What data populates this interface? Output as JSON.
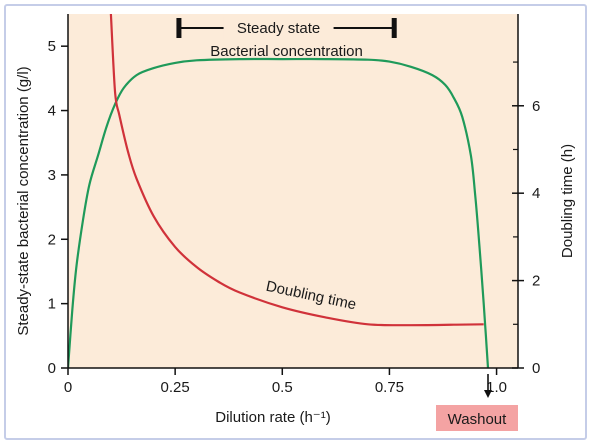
{
  "chart_data": {
    "type": "line",
    "xlabel": "Dilution rate (h⁻¹)",
    "ylabel_left": "Steady-state bacterial concentration (g/l)",
    "ylabel_right": "Doubling time (h)",
    "xlim": [
      0,
      1.05
    ],
    "ylim_left": [
      0,
      5.5
    ],
    "ylim_right": [
      0,
      8.1
    ],
    "x_ticks": [
      {
        "value": 0,
        "label": "0"
      },
      {
        "value": 0.25,
        "label": "0.25"
      },
      {
        "value": 0.5,
        "label": "0.5"
      },
      {
        "value": 0.75,
        "label": "0.75"
      },
      {
        "value": 1.0,
        "label": "1.0"
      }
    ],
    "y_left_ticks": [
      {
        "value": 0,
        "label": "0"
      },
      {
        "value": 1,
        "label": "1"
      },
      {
        "value": 2,
        "label": "2"
      },
      {
        "value": 3,
        "label": "3"
      },
      {
        "value": 4,
        "label": "4"
      },
      {
        "value": 5,
        "label": "5"
      }
    ],
    "y_right_ticks": [
      {
        "value": 0,
        "label": "0"
      },
      {
        "value": 2,
        "label": "2"
      },
      {
        "value": 4,
        "label": "4"
      },
      {
        "value": 6,
        "label": "6"
      }
    ],
    "y_right_minor": [
      1,
      3,
      5,
      7
    ],
    "background_color": "#fcebd9",
    "series": [
      {
        "name": "Bacterial concentration",
        "axis": "left",
        "color": "#1f9a5a",
        "x": [
          0,
          0.01,
          0.02,
          0.035,
          0.05,
          0.07,
          0.09,
          0.11,
          0.13,
          0.16,
          0.2,
          0.25,
          0.3,
          0.4,
          0.5,
          0.6,
          0.7,
          0.75,
          0.8,
          0.85,
          0.88,
          0.9,
          0.92,
          0.94,
          0.95,
          0.96,
          0.97,
          0.975,
          0.98
        ],
        "values": [
          0,
          0.9,
          1.6,
          2.3,
          2.85,
          3.3,
          3.75,
          4.1,
          4.35,
          4.55,
          4.66,
          4.74,
          4.78,
          4.8,
          4.8,
          4.8,
          4.79,
          4.76,
          4.68,
          4.55,
          4.4,
          4.2,
          3.9,
          3.3,
          2.7,
          1.9,
          1.0,
          0.5,
          0
        ]
      },
      {
        "name": "Doubling time",
        "axis": "right",
        "color": "#d0323a",
        "x": [
          0.1,
          0.11,
          0.12,
          0.14,
          0.16,
          0.2,
          0.25,
          0.3,
          0.35,
          0.4,
          0.5,
          0.6,
          0.7,
          0.8,
          0.9,
          0.97
        ],
        "values": [
          8.1,
          6.3,
          5.78,
          4.95,
          4.33,
          3.47,
          2.77,
          2.31,
          1.98,
          1.73,
          1.39,
          1.16,
          1.0,
          0.98,
          0.99,
          1.0
        ]
      }
    ],
    "annotations": {
      "steady_state": {
        "label": "Steady state",
        "x_range": [
          0.26,
          0.76
        ]
      },
      "concentration_label": "Bacterial concentration",
      "doubling_label": "Doubling time",
      "washout_label": "Washout",
      "washout_color": "#f4a3a3",
      "washout_x": 0.98
    }
  }
}
